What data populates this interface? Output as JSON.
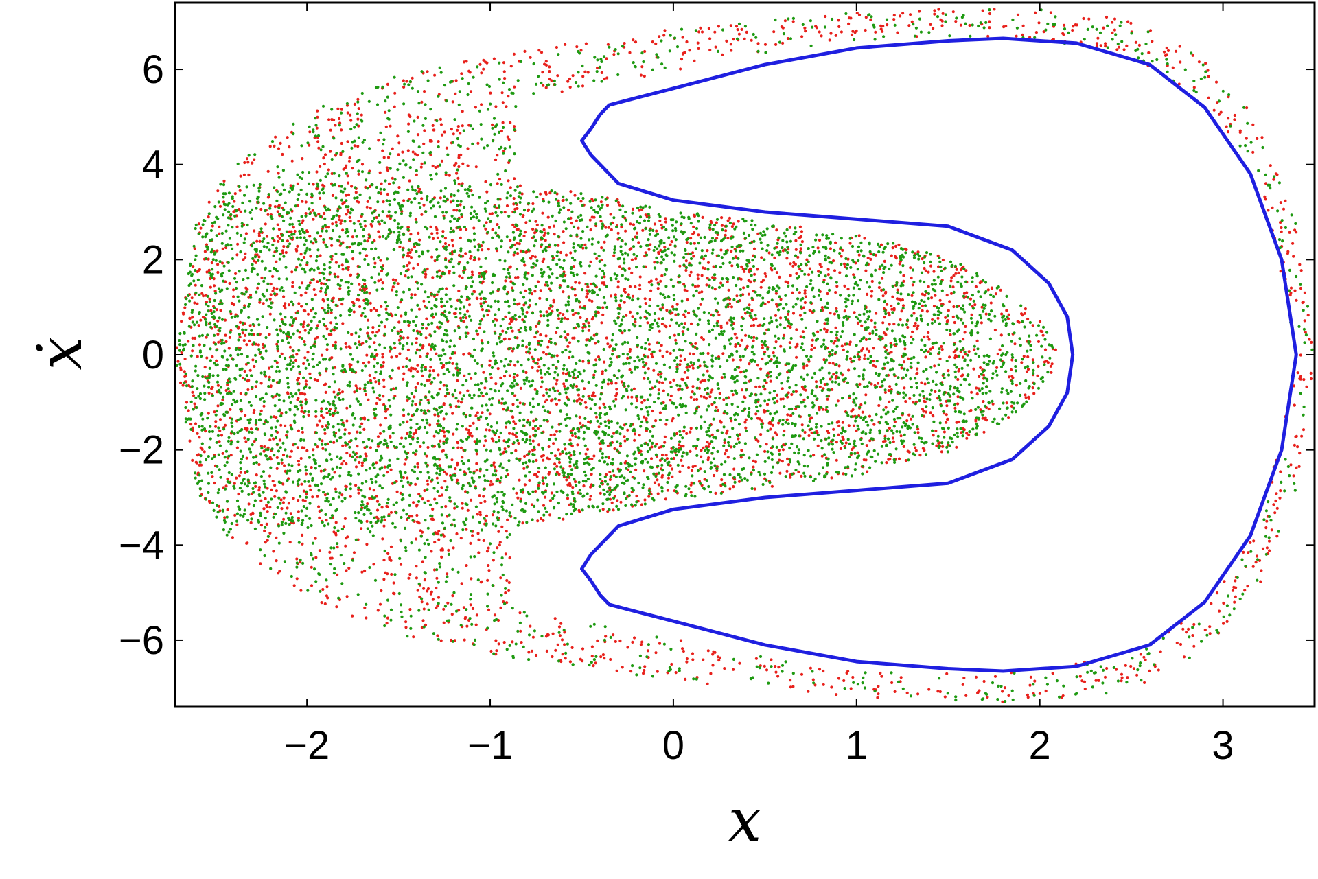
{
  "chart_data": {
    "type": "scatter",
    "title": "",
    "xlabel": "x",
    "ylabel": "ẋ",
    "xlim": [
      -2.72,
      3.5
    ],
    "ylim": [
      -7.4,
      7.4
    ],
    "x_ticks": [
      -2,
      -1,
      0,
      1,
      2,
      3
    ],
    "x_tick_labels": [
      "−2",
      "−1",
      "0",
      "1",
      "2",
      "3"
    ],
    "y_ticks": [
      -6,
      -4,
      -2,
      0,
      2,
      4,
      6
    ],
    "y_tick_labels": [
      "−6",
      "−4",
      "−2",
      "0",
      "2",
      "4",
      "6"
    ],
    "grid": false,
    "legend": "none",
    "series": [
      {
        "kind": "chaotic-scatter",
        "color": "#e8211c",
        "point_count": 4200,
        "seed": 17,
        "region": {
          "outer_half_heights": [
            [
              -2.72,
              0.0
            ],
            [
              -2.6,
              2.9
            ],
            [
              -2.4,
              4.0
            ],
            [
              -2.0,
              5.1
            ],
            [
              -1.5,
              5.9
            ],
            [
              -1.0,
              6.3
            ],
            [
              -0.5,
              6.6
            ],
            [
              0.0,
              6.85
            ],
            [
              0.5,
              7.05
            ],
            [
              1.0,
              7.2
            ],
            [
              1.5,
              7.3
            ],
            [
              2.0,
              7.3
            ],
            [
              2.5,
              7.05
            ],
            [
              2.9,
              6.2
            ],
            [
              3.2,
              4.9
            ],
            [
              3.4,
              2.8
            ],
            [
              3.5,
              0.0
            ]
          ],
          "inner_half_heights": [
            [
              -0.85,
              3.3
            ],
            [
              -0.85,
              5.3
            ],
            [
              -0.5,
              5.6
            ],
            [
              0.0,
              5.95
            ],
            [
              0.5,
              6.35
            ],
            [
              1.0,
              6.6
            ],
            [
              1.5,
              6.7
            ],
            [
              2.0,
              6.65
            ],
            [
              2.5,
              6.25
            ],
            [
              2.9,
              5.35
            ],
            [
              3.2,
              3.6
            ],
            [
              3.33,
              1.5
            ],
            [
              3.4,
              0.0
            ]
          ],
          "tongue_upper": [
            [
              -0.85,
              3.6
            ],
            [
              -0.5,
              3.4
            ],
            [
              0.0,
              3.05
            ],
            [
              0.5,
              2.8
            ],
            [
              1.0,
              2.55
            ],
            [
              1.5,
              2.05
            ],
            [
              1.85,
              1.3
            ],
            [
              2.05,
              0.5
            ],
            [
              2.1,
              0.0
            ]
          ],
          "tongue_bias": 0.35
        }
      },
      {
        "kind": "chaotic-scatter",
        "color": "#1f9a12",
        "point_count": 5600,
        "seed": 91,
        "region": {
          "outer_half_heights": [
            [
              -2.72,
              0.0
            ],
            [
              -2.6,
              2.9
            ],
            [
              -2.4,
              4.0
            ],
            [
              -2.0,
              5.1
            ],
            [
              -1.5,
              5.9
            ],
            [
              -1.0,
              6.3
            ],
            [
              -0.5,
              6.6
            ],
            [
              0.0,
              6.85
            ],
            [
              0.5,
              7.05
            ],
            [
              1.0,
              7.2
            ],
            [
              1.5,
              7.3
            ],
            [
              2.0,
              7.3
            ],
            [
              2.5,
              7.05
            ],
            [
              2.9,
              6.2
            ],
            [
              3.2,
              4.9
            ],
            [
              3.4,
              2.8
            ],
            [
              3.5,
              0.0
            ]
          ],
          "inner_half_heights": [
            [
              -0.85,
              3.3
            ],
            [
              -0.85,
              5.3
            ],
            [
              -0.5,
              5.6
            ],
            [
              0.0,
              5.95
            ],
            [
              0.5,
              6.35
            ],
            [
              1.0,
              6.6
            ],
            [
              1.5,
              6.7
            ],
            [
              2.0,
              6.65
            ],
            [
              2.5,
              6.25
            ],
            [
              2.9,
              5.35
            ],
            [
              3.2,
              3.6
            ],
            [
              3.33,
              1.5
            ],
            [
              3.4,
              0.0
            ]
          ],
          "tongue_upper": [
            [
              -0.85,
              3.6
            ],
            [
              -0.5,
              3.4
            ],
            [
              0.0,
              3.05
            ],
            [
              0.5,
              2.8
            ],
            [
              1.0,
              2.55
            ],
            [
              1.5,
              2.05
            ],
            [
              1.85,
              1.3
            ],
            [
              2.05,
              0.5
            ],
            [
              2.1,
              0.0
            ]
          ],
          "tongue_bias": 0.7
        }
      },
      {
        "kind": "closed-curve",
        "color": "#1f1fe0",
        "upper_branch": [
          [
            2.18,
            0.0
          ],
          [
            2.15,
            0.8
          ],
          [
            2.05,
            1.5
          ],
          [
            1.85,
            2.2
          ],
          [
            1.5,
            2.7
          ],
          [
            1.0,
            2.85
          ],
          [
            0.5,
            3.0
          ],
          [
            0.0,
            3.25
          ],
          [
            -0.3,
            3.6
          ],
          [
            -0.45,
            4.2
          ],
          [
            -0.5,
            4.5
          ],
          [
            -0.45,
            4.75
          ],
          [
            -0.4,
            5.05
          ],
          [
            -0.35,
            5.25
          ],
          [
            -0.2,
            5.4
          ],
          [
            0.0,
            5.6
          ],
          [
            0.5,
            6.1
          ],
          [
            1.0,
            6.45
          ],
          [
            1.5,
            6.6
          ],
          [
            1.8,
            6.65
          ],
          [
            2.2,
            6.55
          ],
          [
            2.6,
            6.1
          ],
          [
            2.9,
            5.2
          ],
          [
            3.15,
            3.8
          ],
          [
            3.32,
            2.0
          ],
          [
            3.4,
            0.0
          ]
        ]
      }
    ]
  }
}
